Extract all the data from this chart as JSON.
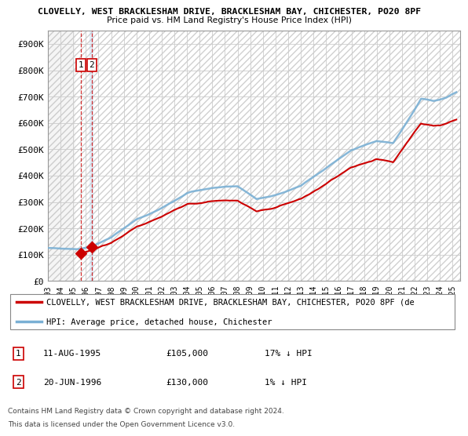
{
  "title1": "CLOVELLY, WEST BRACKLESHAM DRIVE, BRACKLESHAM BAY, CHICHESTER, PO20 8PF",
  "title2": "Price paid vs. HM Land Registry's House Price Index (HPI)",
  "ylim": [
    0,
    950000
  ],
  "yticks": [
    0,
    100000,
    200000,
    300000,
    400000,
    500000,
    600000,
    700000,
    800000,
    900000
  ],
  "ytick_labels": [
    "£0",
    "£100K",
    "£200K",
    "£300K",
    "£400K",
    "£500K",
    "£600K",
    "£700K",
    "£800K",
    "£900K"
  ],
  "xlim_start": 1993.0,
  "xlim_end": 2025.6,
  "xticks": [
    1993,
    1994,
    1995,
    1996,
    1997,
    1998,
    1999,
    2000,
    2001,
    2002,
    2003,
    2004,
    2005,
    2006,
    2007,
    2008,
    2009,
    2010,
    2011,
    2012,
    2013,
    2014,
    2015,
    2016,
    2017,
    2018,
    2019,
    2020,
    2021,
    2022,
    2023,
    2024,
    2025
  ],
  "sale1_x": 1995.61,
  "sale1_y": 105000,
  "sale1_label": "1",
  "sale1_date": "11-AUG-1995",
  "sale1_price": "£105,000",
  "sale1_hpi": "17% ↓ HPI",
  "sale2_x": 1996.47,
  "sale2_y": 130000,
  "sale2_label": "2",
  "sale2_date": "20-JUN-1996",
  "sale2_price": "£130,000",
  "sale2_hpi": "1% ↓ HPI",
  "legend_line1": "CLOVELLY, WEST BRACKLESHAM DRIVE, BRACKLESHAM BAY, CHICHESTER, PO20 8PF (de",
  "legend_line2": "HPI: Average price, detached house, Chichester",
  "footer1": "Contains HM Land Registry data © Crown copyright and database right 2024.",
  "footer2": "This data is licensed under the Open Government Licence v3.0.",
  "property_color": "#cc0000",
  "hpi_color": "#7ab0d4",
  "grid_color": "#cccccc",
  "hatch_color": "#d0d0d0"
}
